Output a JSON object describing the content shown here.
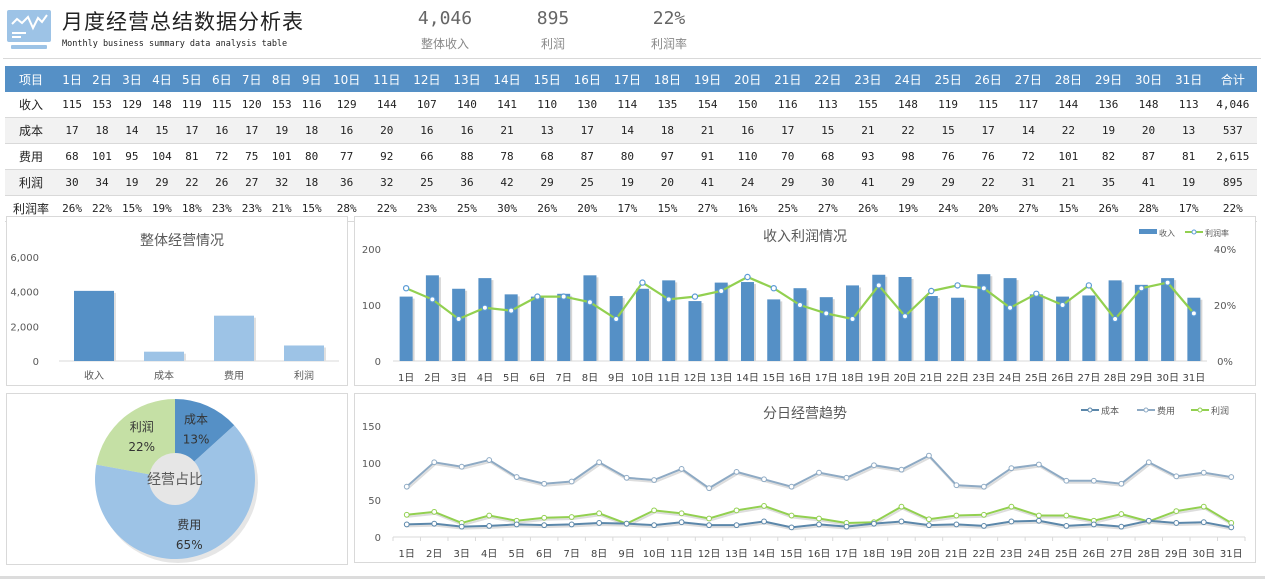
{
  "header": {
    "title": "月度经营总结数据分析表",
    "subtitle": "Monthly business summary data analysis table",
    "logo_icon": "monitor-chart-icon",
    "kpis": [
      {
        "value": "4,046",
        "label": "整体收入"
      },
      {
        "value": "895",
        "label": "利润"
      },
      {
        "value": "22%",
        "label": "利润率"
      }
    ]
  },
  "colors": {
    "primary_blue": "#5590c6",
    "light_blue": "#9dc3e6",
    "green": "#92d050",
    "pie_green": "#c5e0a5",
    "cost_line": "#5b87aa",
    "expense_line": "#8eaac4"
  },
  "table": {
    "header": [
      "项目",
      "1日",
      "2日",
      "3日",
      "4日",
      "5日",
      "6日",
      "7日",
      "8日",
      "9日",
      "10日",
      "11日",
      "12日",
      "13日",
      "14日",
      "15日",
      "16日",
      "17日",
      "18日",
      "19日",
      "20日",
      "21日",
      "22日",
      "23日",
      "24日",
      "25日",
      "26日",
      "27日",
      "28日",
      "29日",
      "30日",
      "31日",
      "合计"
    ],
    "rows": [
      {
        "label": "收入",
        "cells": [
          "115",
          "153",
          "129",
          "148",
          "119",
          "115",
          "120",
          "153",
          "116",
          "129",
          "144",
          "107",
          "140",
          "141",
          "110",
          "130",
          "114",
          "135",
          "154",
          "150",
          "116",
          "113",
          "155",
          "148",
          "119",
          "115",
          "117",
          "144",
          "136",
          "148",
          "113",
          "4,046"
        ]
      },
      {
        "label": "成本",
        "cells": [
          "17",
          "18",
          "14",
          "15",
          "17",
          "16",
          "17",
          "19",
          "18",
          "16",
          "20",
          "16",
          "16",
          "21",
          "13",
          "17",
          "14",
          "18",
          "21",
          "16",
          "17",
          "15",
          "21",
          "22",
          "15",
          "17",
          "14",
          "22",
          "19",
          "20",
          "13",
          "537"
        ]
      },
      {
        "label": "费用",
        "cells": [
          "68",
          "101",
          "95",
          "104",
          "81",
          "72",
          "75",
          "101",
          "80",
          "77",
          "92",
          "66",
          "88",
          "78",
          "68",
          "87",
          "80",
          "97",
          "91",
          "110",
          "70",
          "68",
          "93",
          "98",
          "76",
          "76",
          "72",
          "101",
          "82",
          "87",
          "81",
          "2,615"
        ]
      },
      {
        "label": "利润",
        "cells": [
          "30",
          "34",
          "19",
          "29",
          "22",
          "26",
          "27",
          "32",
          "18",
          "36",
          "32",
          "25",
          "36",
          "42",
          "29",
          "25",
          "19",
          "20",
          "41",
          "24",
          "29",
          "30",
          "41",
          "29",
          "29",
          "22",
          "31",
          "21",
          "35",
          "41",
          "19",
          "895"
        ]
      },
      {
        "label": "利润率",
        "cells": [
          "26%",
          "22%",
          "15%",
          "19%",
          "18%",
          "23%",
          "23%",
          "21%",
          "15%",
          "28%",
          "22%",
          "23%",
          "25%",
          "30%",
          "26%",
          "20%",
          "17%",
          "15%",
          "27%",
          "16%",
          "25%",
          "27%",
          "26%",
          "19%",
          "24%",
          "20%",
          "27%",
          "15%",
          "26%",
          "28%",
          "17%",
          "22%"
        ]
      }
    ]
  },
  "chart_data": [
    {
      "id": "overall",
      "type": "bar",
      "title": "整体经营情况",
      "categories": [
        "收入",
        "成本",
        "费用",
        "利润"
      ],
      "values": [
        4046,
        537,
        2615,
        895
      ],
      "ylim": [
        0,
        6000
      ],
      "yticks": [
        "0",
        "2,000",
        "4,000",
        "6,000"
      ],
      "ytick_values": [
        0,
        2000,
        4000,
        6000
      ],
      "grid": false
    },
    {
      "id": "income_profit",
      "type": "bar",
      "title": "收入利润情况",
      "categories": [
        "1日",
        "2日",
        "3日",
        "4日",
        "5日",
        "6日",
        "7日",
        "8日",
        "9日",
        "10日",
        "11日",
        "12日",
        "13日",
        "14日",
        "15日",
        "16日",
        "17日",
        "18日",
        "19日",
        "20日",
        "21日",
        "22日",
        "23日",
        "24日",
        "25日",
        "26日",
        "27日",
        "28日",
        "29日",
        "30日",
        "31日"
      ],
      "series": [
        {
          "name": "收入",
          "type": "bar",
          "axis": "left",
          "values": [
            115,
            153,
            129,
            148,
            119,
            115,
            120,
            153,
            116,
            129,
            144,
            107,
            140,
            141,
            110,
            130,
            114,
            135,
            154,
            150,
            116,
            113,
            155,
            148,
            119,
            115,
            117,
            144,
            136,
            148,
            113
          ]
        },
        {
          "name": "利润率",
          "type": "line",
          "axis": "right",
          "values": [
            26,
            22,
            15,
            19,
            18,
            23,
            23,
            21,
            15,
            28,
            22,
            23,
            25,
            30,
            26,
            20,
            17,
            15,
            27,
            16,
            25,
            27,
            26,
            19,
            24,
            20,
            27,
            15,
            26,
            28,
            17
          ]
        }
      ],
      "ylim": [
        0,
        200
      ],
      "yticks": [
        "0",
        "100",
        "200"
      ],
      "ytick_values": [
        0,
        100,
        200
      ],
      "y2lim": [
        0,
        40
      ],
      "y2ticks": [
        "0%",
        "20%",
        "40%"
      ],
      "y2tick_values": [
        0,
        20,
        40
      ],
      "legend": "top-right",
      "grid": false
    },
    {
      "id": "share",
      "type": "pie",
      "title": "经营占比",
      "labels": [
        "成本",
        "费用",
        "利润"
      ],
      "values": [
        537,
        2615,
        895
      ],
      "percent_labels": [
        "13%",
        "65%",
        "22%"
      ],
      "donut": true
    },
    {
      "id": "daily_trend",
      "type": "line",
      "title": "分日经营趋势",
      "categories": [
        "1日",
        "2日",
        "3日",
        "4日",
        "5日",
        "6日",
        "7日",
        "8日",
        "9日",
        "10日",
        "11日",
        "12日",
        "13日",
        "14日",
        "15日",
        "16日",
        "17日",
        "18日",
        "19日",
        "20日",
        "21日",
        "22日",
        "23日",
        "24日",
        "25日",
        "26日",
        "27日",
        "28日",
        "29日",
        "30日",
        "31日"
      ],
      "series": [
        {
          "name": "成本",
          "values": [
            17,
            18,
            14,
            15,
            17,
            16,
            17,
            19,
            18,
            16,
            20,
            16,
            16,
            21,
            13,
            17,
            14,
            18,
            21,
            16,
            17,
            15,
            21,
            22,
            15,
            17,
            14,
            22,
            19,
            20,
            13
          ]
        },
        {
          "name": "费用",
          "values": [
            68,
            101,
            95,
            104,
            81,
            72,
            75,
            101,
            80,
            77,
            92,
            66,
            88,
            78,
            68,
            87,
            80,
            97,
            91,
            110,
            70,
            68,
            93,
            98,
            76,
            76,
            72,
            101,
            82,
            87,
            81
          ]
        },
        {
          "name": "利润",
          "values": [
            30,
            34,
            19,
            29,
            22,
            26,
            27,
            32,
            18,
            36,
            32,
            25,
            36,
            42,
            29,
            25,
            19,
            20,
            41,
            24,
            29,
            30,
            41,
            29,
            29,
            22,
            31,
            21,
            35,
            41,
            19
          ]
        }
      ],
      "ylim": [
        0,
        150
      ],
      "yticks": [
        "0",
        "50",
        "100",
        "150"
      ],
      "ytick_values": [
        0,
        50,
        100,
        150
      ],
      "legend": "top-right",
      "grid": false
    }
  ]
}
